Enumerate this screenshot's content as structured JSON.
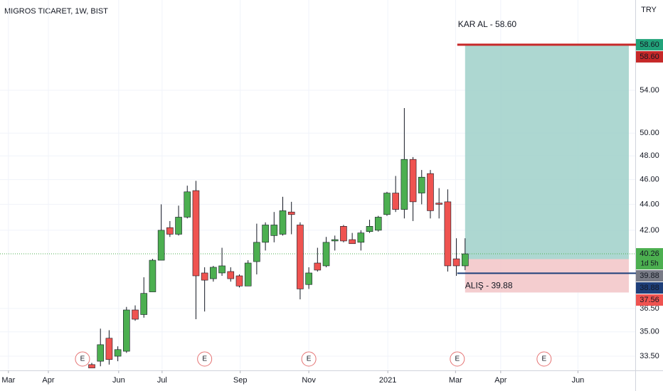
{
  "chart_data": {
    "type": "candlestick",
    "title": "MIGROS TICARET, 1W, BIST",
    "currency": "TRY",
    "log_scale": true,
    "grid": true,
    "categories": [
      null,
      null,
      null,
      null,
      null,
      null,
      null,
      null,
      null,
      null,
      null,
      null,
      null,
      null,
      null,
      null,
      null,
      null,
      null,
      null,
      null,
      null,
      null,
      null,
      null,
      null,
      null,
      null,
      null,
      null,
      null,
      null,
      null,
      null,
      null,
      null,
      null,
      null,
      null,
      null,
      null,
      null,
      null,
      null
    ],
    "up_color": "#4caf50",
    "down_color": "#ef5350",
    "open": [
      33.0,
      33.2,
      34.6,
      33.5,
      33.8,
      36.4,
      36.1,
      37.6,
      39.8,
      42.2,
      41.7,
      43.0,
      45.1,
      38.9,
      38.5,
      38.9,
      39.0,
      38.7,
      38.0,
      39.7,
      41.1,
      41.6,
      41.7,
      43.4,
      42.4,
      38.1,
      39.6,
      39.4,
      41.2,
      42.3,
      41.3,
      41.1,
      41.9,
      42.0,
      43.2,
      44.9,
      43.6,
      47.7,
      44.9,
      46.5,
      44.1,
      44.2,
      39.9,
      39.4
    ],
    "high": [
      33.1,
      35.2,
      35.1,
      34.1,
      36.6,
      36.7,
      38.6,
      39.9,
      44.0,
      42.7,
      43.9,
      45.5,
      45.9,
      39.3,
      39.4,
      40.7,
      39.3,
      38.8,
      39.8,
      42.5,
      42.6,
      43.4,
      44.6,
      44.2,
      42.6,
      39.3,
      40.7,
      41.5,
      41.6,
      42.4,
      41.8,
      42.0,
      42.8,
      43.1,
      45.0,
      46.3,
      52.3,
      47.9,
      46.8,
      46.8,
      45.3,
      45.2,
      41.4,
      41.4
    ],
    "low": [
      32.9,
      32.9,
      33.0,
      33.2,
      33.7,
      35.7,
      35.9,
      37.6,
      39.8,
      41.5,
      41.6,
      42.9,
      35.8,
      36.3,
      38.3,
      38.7,
      38.3,
      37.9,
      38.0,
      38.8,
      40.5,
      41.1,
      41.6,
      41.7,
      37.1,
      37.8,
      39.0,
      39.3,
      40.5,
      41.1,
      41.0,
      40.5,
      41.8,
      41.9,
      43.1,
      43.4,
      42.9,
      42.7,
      44.0,
      42.9,
      42.9,
      39.0,
      38.7,
      39.1
    ],
    "close": [
      32.8,
      34.2,
      33.3,
      33.9,
      36.4,
      35.8,
      37.5,
      39.8,
      42.0,
      41.7,
      43.0,
      45.0,
      38.7,
      38.4,
      39.3,
      39.4,
      38.5,
      38.0,
      39.6,
      41.1,
      42.4,
      42.4,
      43.5,
      43.2,
      37.8,
      38.9,
      39.1,
      41.1,
      41.3,
      41.2,
      41.0,
      41.8,
      42.3,
      43.0,
      44.9,
      43.6,
      47.7,
      44.2,
      46.2,
      43.5,
      44.0,
      39.4,
      39.4,
      40.26
    ],
    "xlim": [
      -10.57,
      62.6
    ],
    "xticks": [
      {
        "value": -9.6,
        "label": "Mar"
      },
      {
        "value": -5.0,
        "label": "Apr"
      },
      {
        "value": 3.1,
        "label": "Jun"
      },
      {
        "value": 8.1,
        "label": "Jul"
      },
      {
        "value": 17.1,
        "label": "Sep"
      },
      {
        "value": 25.0,
        "label": "Nov"
      },
      {
        "value": 34.1,
        "label": "2021"
      },
      {
        "value": 41.9,
        "label": "Mar"
      },
      {
        "value": 47.1,
        "label": "Apr"
      },
      {
        "value": 56.0,
        "label": "Jun"
      }
    ],
    "ylim": [
      32.7,
      63.5
    ],
    "yticks": [
      {
        "value": 33.5,
        "label": "33.50"
      },
      {
        "value": 35,
        "label": "35.00"
      },
      {
        "value": 36.5,
        "label": "36.50"
      },
      {
        "value": 42,
        "label": "42.00"
      },
      {
        "value": 44,
        "label": "44.00"
      },
      {
        "value": 46,
        "label": "46.00"
      },
      {
        "value": 48,
        "label": "48.00"
      },
      {
        "value": 50,
        "label": "50.00"
      },
      {
        "value": 54,
        "label": "54.00"
      }
    ],
    "position": {
      "start": 43,
      "end": 61.86,
      "target": 58.6,
      "entry": 39.88,
      "stop": 37.56,
      "target_text": "KAR AL - 58.60",
      "entry_text": "ALIŞ - 39.88",
      "profit_color": "#9fd0c9",
      "loss_color": "#f2c4c7"
    },
    "target_line": {
      "value": 58.6,
      "color": "#c62828"
    },
    "entry_line": {
      "value": 38.88,
      "color": "#1e3f7a"
    },
    "last_price": {
      "value": 40.26,
      "color": "#4caf50"
    },
    "price_labels": [
      {
        "value": 58.6,
        "label": "58.60",
        "color": "#22a37a"
      },
      {
        "value": 58.6,
        "label": "58.60",
        "color": "#c62828"
      },
      {
        "value": 40.26,
        "label": "40.26",
        "color": "#4caf50",
        "countdown": "1d 5h"
      },
      {
        "value": 39.88,
        "label": "39.88",
        "color": "#787b86"
      },
      {
        "value": 38.88,
        "label": "38.88",
        "color": "#1e3f7a"
      },
      {
        "value": 37.56,
        "label": "37.56",
        "color": "#ef5350"
      }
    ],
    "events": [
      {
        "x": -1.07,
        "label": "E"
      },
      {
        "x": 13.0,
        "label": "E"
      },
      {
        "x": 25.0,
        "label": "E"
      },
      {
        "x": 42.1,
        "label": "E"
      },
      {
        "x": 52.1,
        "label": "E"
      }
    ]
  }
}
